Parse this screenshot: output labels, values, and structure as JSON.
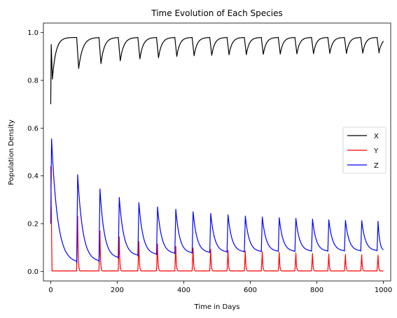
{
  "chart_data": {
    "type": "line",
    "title": "Time Evolution of Each Species",
    "xlabel": "Time in Days",
    "ylabel": "Population Density",
    "xlim": [
      -22,
      1022
    ],
    "ylim": [
      -0.04,
      1.04
    ],
    "xticks": [
      0,
      200,
      400,
      600,
      800,
      1000
    ],
    "xtick_labels": [
      "0",
      "200",
      "400",
      "600",
      "800",
      "1000"
    ],
    "yticks": [
      0.0,
      0.2,
      0.4,
      0.6,
      0.8,
      1.0
    ],
    "ytick_labels": [
      "0.0",
      "0.2",
      "0.4",
      "0.6",
      "0.8",
      "1.0"
    ],
    "grid": false,
    "legend_position": "center-right",
    "pulse_days": [
      0,
      78,
      145,
      203,
      262,
      318,
      373,
      425,
      478,
      530,
      582,
      633,
      684,
      734,
      784,
      833,
      883,
      932,
      981
    ],
    "series": [
      {
        "name": "X",
        "color": "#000000",
        "start_value": 0.7,
        "peak_value": 0.95,
        "trough_values": [
          0.805,
          0.85,
          0.87,
          0.882,
          0.89,
          0.895,
          0.9,
          0.903,
          0.905,
          0.907,
          0.908,
          0.909,
          0.91,
          0.911,
          0.912,
          0.913,
          0.913,
          0.914,
          0.915
        ],
        "plateau_value": 0.98,
        "end_value": 0.965
      },
      {
        "name": "Y",
        "color": "#ff0000",
        "start_value": 0.44,
        "peak_values": [
          0.44,
          0.23,
          0.17,
          0.145,
          0.125,
          0.115,
          0.105,
          0.098,
          0.092,
          0.088,
          0.085,
          0.082,
          0.08,
          0.077,
          0.075,
          0.073,
          0.071,
          0.07,
          0.068
        ],
        "baseline_value": 0.002
      },
      {
        "name": "Z",
        "color": "#0000ff",
        "start_value": 0.2,
        "peak_values": [
          0.555,
          0.405,
          0.345,
          0.31,
          0.288,
          0.27,
          0.26,
          0.25,
          0.243,
          0.237,
          0.232,
          0.228,
          0.225,
          0.222,
          0.219,
          0.216,
          0.214,
          0.212,
          0.21
        ],
        "trough_values": [
          0.035,
          0.04,
          0.055,
          0.065,
          0.07,
          0.074,
          0.076,
          0.078,
          0.08,
          0.081,
          0.082,
          0.083,
          0.083,
          0.084,
          0.084,
          0.085,
          0.085,
          0.086,
          0.086
        ],
        "end_value": 0.085
      }
    ]
  }
}
